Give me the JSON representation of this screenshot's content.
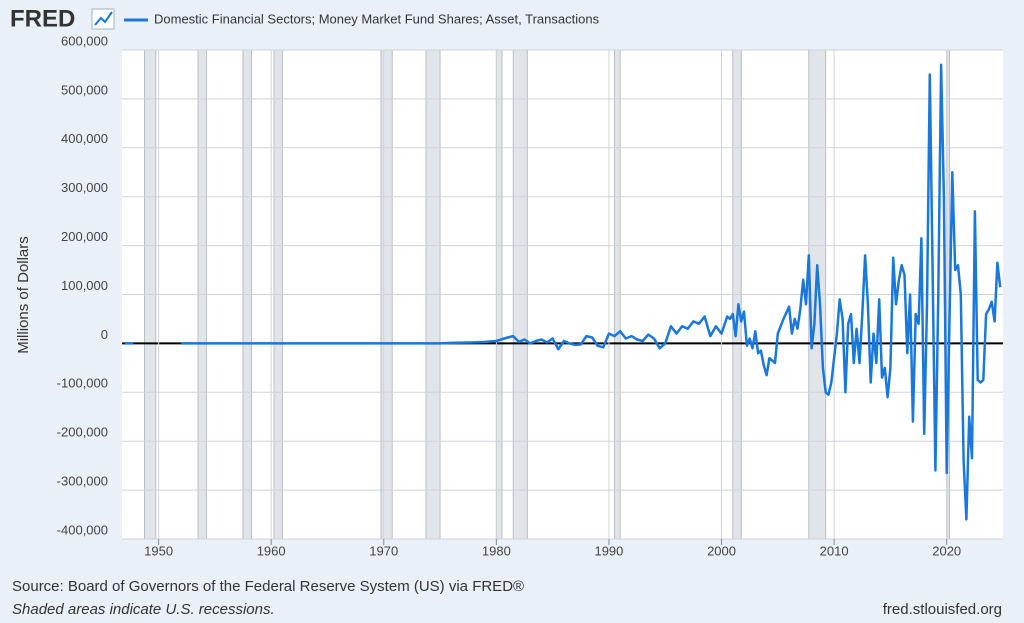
{
  "chart_data": {
    "type": "line",
    "brand": "FRED",
    "ylabel": "Millions of Dollars",
    "source": "Source: Board of Governors of the Federal Reserve System (US) via FRED®",
    "note": "Shaded areas indicate U.S. recessions.",
    "url": "fred.stlouisfed.org",
    "xlim": [
      1946.75,
      2025.0
    ],
    "xticks": [
      1950,
      1960,
      1970,
      1980,
      1990,
      2000,
      2010,
      2020
    ],
    "ylim": [
      -400000,
      600000
    ],
    "yticks": [
      {
        "value": -400000,
        "label": "-400,000"
      },
      {
        "value": -300000,
        "label": "-300,000"
      },
      {
        "value": -200000,
        "label": "-200,000"
      },
      {
        "value": -100000,
        "label": "-100,000"
      },
      0,
      {
        "value": 100000,
        "label": "100,000"
      },
      {
        "value": 200000,
        "label": "200,000"
      },
      {
        "value": 300000,
        "label": "300,000"
      },
      {
        "value": 400000,
        "label": "400,000"
      },
      {
        "value": 500000,
        "label": "500,000"
      },
      {
        "value": 600000,
        "label": "600,000"
      }
    ],
    "grid": true,
    "recessions": [
      [
        1948.75,
        1949.75
      ],
      [
        1953.5,
        1954.25
      ],
      [
        1957.5,
        1958.25
      ],
      [
        1960.25,
        1961.0
      ],
      [
        1969.75,
        1970.75
      ],
      [
        1973.75,
        1975.0
      ],
      [
        1980.0,
        1980.5
      ],
      [
        1981.5,
        1982.75
      ],
      [
        1990.5,
        1991.0
      ],
      [
        2001.0,
        2001.75
      ],
      [
        2007.75,
        2009.25
      ],
      [
        2020.0,
        2020.25
      ]
    ],
    "x": [
      1947.0,
      1947.25,
      1947.5,
      1947.75,
      1948.0,
      1952.0,
      1960.0,
      1970.0,
      1975.0,
      1976.0,
      1978.0,
      1979.0,
      1980.0,
      1981.0,
      1981.5,
      1982.0,
      1982.5,
      1983.0,
      1983.5,
      1984.0,
      1984.5,
      1985.0,
      1985.5,
      1986.0,
      1986.5,
      1987.0,
      1987.5,
      1988.0,
      1988.5,
      1989.0,
      1989.5,
      1990.0,
      1990.5,
      1991.0,
      1991.5,
      1992.0,
      1992.5,
      1993.0,
      1993.5,
      1994.0,
      1994.5,
      1995.0,
      1995.5,
      1996.0,
      1996.5,
      1997.0,
      1997.5,
      1998.0,
      1998.5,
      1999.0,
      1999.5,
      2000.0,
      2000.5,
      2000.75,
      2001.0,
      2001.25,
      2001.5,
      2001.75,
      2002.0,
      2002.25,
      2002.5,
      2002.75,
      2003.0,
      2003.25,
      2003.5,
      2003.75,
      2004.0,
      2004.25,
      2004.5,
      2004.75,
      2005.0,
      2005.5,
      2006.0,
      2006.25,
      2006.5,
      2006.75,
      2007.0,
      2007.25,
      2007.5,
      2007.75,
      2008.0,
      2008.25,
      2008.5,
      2008.75,
      2009.0,
      2009.25,
      2009.5,
      2009.75,
      2010.0,
      2010.25,
      2010.5,
      2010.75,
      2011.0,
      2011.25,
      2011.5,
      2011.75,
      2012.0,
      2012.25,
      2012.5,
      2012.75,
      2013.0,
      2013.25,
      2013.5,
      2013.75,
      2014.0,
      2014.25,
      2014.5,
      2014.75,
      2015.0,
      2015.25,
      2015.5,
      2015.75,
      2016.0,
      2016.25,
      2016.5,
      2016.75,
      2017.0,
      2017.25,
      2017.5,
      2017.75,
      2018.0,
      2018.25,
      2018.5,
      2018.75,
      2019.0,
      2019.25,
      2019.5,
      2019.75,
      2020.0,
      2020.25,
      2020.5,
      2020.75,
      2021.0,
      2021.25,
      2021.5,
      2021.75,
      2022.0,
      2022.25,
      2022.5,
      2022.75,
      2023.0,
      2023.25,
      2023.5,
      2023.75,
      2024.0,
      2024.25,
      2024.5,
      2024.75
    ],
    "series": [
      {
        "name": "Domestic Financial Sectors; Money Market Fund Shares; Asset, Transactions",
        "color": "#1a78dc",
        "values": [
          0,
          0,
          0,
          0,
          null,
          0,
          0,
          0,
          0,
          1000,
          2000,
          3000,
          5000,
          12000,
          15000,
          3000,
          8000,
          0,
          5000,
          8000,
          2000,
          10000,
          -12000,
          5000,
          0,
          -3000,
          -2000,
          15000,
          12000,
          -5000,
          -8000,
          20000,
          15000,
          25000,
          10000,
          15000,
          8000,
          5000,
          18000,
          10000,
          -10000,
          0,
          35000,
          20000,
          35000,
          30000,
          45000,
          40000,
          55000,
          15000,
          35000,
          20000,
          55000,
          50000,
          60000,
          15000,
          80000,
          45000,
          65000,
          -5000,
          10000,
          -10000,
          25000,
          -20000,
          -15000,
          -45000,
          -65000,
          -30000,
          -35000,
          -40000,
          20000,
          50000,
          75000,
          20000,
          50000,
          30000,
          70000,
          130000,
          80000,
          180000,
          -10000,
          40000,
          160000,
          80000,
          -50000,
          -100000,
          -105000,
          -80000,
          -30000,
          20000,
          90000,
          50000,
          -100000,
          40000,
          60000,
          -40000,
          30000,
          -40000,
          60000,
          180000,
          80000,
          -80000,
          20000,
          -40000,
          90000,
          -70000,
          -50000,
          -110000,
          -50000,
          175000,
          80000,
          130000,
          160000,
          140000,
          -20000,
          100000,
          -160000,
          60000,
          40000,
          215000,
          -185000,
          80000,
          550000,
          150000,
          -260000,
          100000,
          570000,
          300000,
          -265000,
          50000,
          350000,
          150000,
          160000,
          100000,
          -240000,
          -360000,
          -150000,
          -235000,
          270000,
          -75000,
          -80000,
          -75000,
          60000,
          70000,
          85000,
          45000,
          165000,
          115000
        ]
      }
    ]
  }
}
